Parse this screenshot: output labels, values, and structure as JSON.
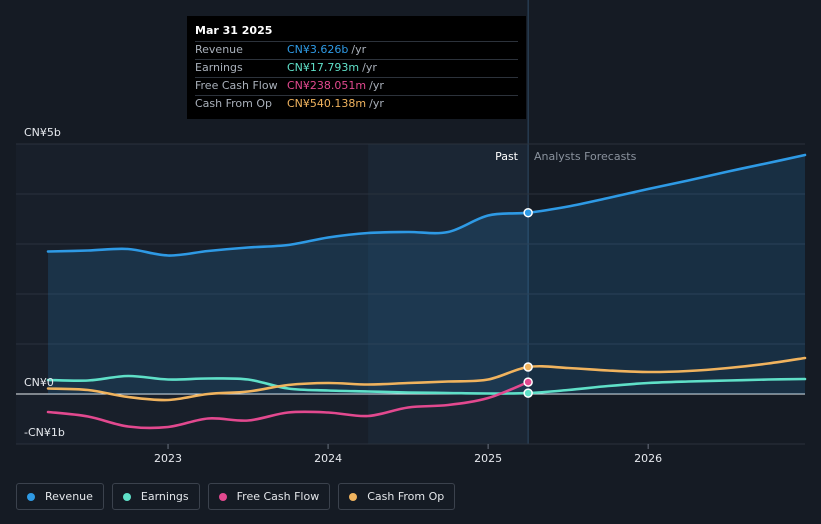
{
  "tooltip": {
    "date": "Mar 31 2025",
    "rows": [
      {
        "name": "Revenue",
        "value": "CN¥3.626b",
        "unit": "/yr",
        "color": "#2e9ae5"
      },
      {
        "name": "Earnings",
        "value": "CN¥17.793m",
        "unit": "/yr",
        "color": "#5fe0c8"
      },
      {
        "name": "Free Cash Flow",
        "value": "CN¥238.051m",
        "unit": "/yr",
        "color": "#e2498f"
      },
      {
        "name": "Cash From Op",
        "value": "CN¥540.138m",
        "unit": "/yr",
        "color": "#f0b35e"
      }
    ]
  },
  "labels": {
    "past": "Past",
    "forecast": "Analysts Forecasts"
  },
  "legend": [
    {
      "name": "Revenue",
      "color": "#2e9ae5"
    },
    {
      "name": "Earnings",
      "color": "#5fe0c8"
    },
    {
      "name": "Free Cash Flow",
      "color": "#e2498f"
    },
    {
      "name": "Cash From Op",
      "color": "#f0b35e"
    }
  ],
  "chart_data": {
    "type": "line",
    "y_tick_labels": [
      "CN¥5b",
      "CN¥0",
      "-CN¥1b"
    ],
    "ylim": [
      -1,
      5
    ],
    "x_ticks": [
      {
        "label": "2023",
        "x": 2023.0
      },
      {
        "label": "2024",
        "x": 2024.0
      },
      {
        "label": "2025",
        "x": 2025.0
      },
      {
        "label": "2026",
        "x": 2026.0
      }
    ],
    "xlim": [
      2022.05,
      2026.98
    ],
    "past_end": 2025.25,
    "highlight_start": 2024.25,
    "grid": true,
    "series": [
      {
        "name": "Revenue",
        "color": "#2e9ae5",
        "area": true,
        "points": [
          [
            2022.25,
            2.85
          ],
          [
            2022.5,
            2.87
          ],
          [
            2022.75,
            2.9
          ],
          [
            2023.0,
            2.77
          ],
          [
            2023.25,
            2.86
          ],
          [
            2023.5,
            2.93
          ],
          [
            2023.75,
            2.98
          ],
          [
            2024.0,
            3.13
          ],
          [
            2024.25,
            3.22
          ],
          [
            2024.5,
            3.24
          ],
          [
            2024.75,
            3.24
          ],
          [
            2025.0,
            3.57
          ],
          [
            2025.25,
            3.626
          ],
          [
            2025.5,
            3.75
          ],
          [
            2025.75,
            3.92
          ],
          [
            2026.0,
            4.1
          ],
          [
            2026.25,
            4.27
          ],
          [
            2026.5,
            4.45
          ],
          [
            2026.75,
            4.62
          ],
          [
            2026.98,
            4.78
          ]
        ]
      },
      {
        "name": "Earnings",
        "color": "#5fe0c8",
        "area": false,
        "points": [
          [
            2022.25,
            0.28
          ],
          [
            2022.5,
            0.27
          ],
          [
            2022.75,
            0.36
          ],
          [
            2023.0,
            0.29
          ],
          [
            2023.25,
            0.31
          ],
          [
            2023.5,
            0.29
          ],
          [
            2023.75,
            0.11
          ],
          [
            2024.0,
            0.07
          ],
          [
            2024.25,
            0.05
          ],
          [
            2024.5,
            0.03
          ],
          [
            2024.75,
            0.02
          ],
          [
            2025.0,
            0.01
          ],
          [
            2025.25,
            0.017793
          ],
          [
            2025.5,
            0.08
          ],
          [
            2025.75,
            0.16
          ],
          [
            2026.0,
            0.22
          ],
          [
            2026.25,
            0.25
          ],
          [
            2026.5,
            0.27
          ],
          [
            2026.75,
            0.29
          ],
          [
            2026.98,
            0.3
          ]
        ]
      },
      {
        "name": "Free Cash Flow",
        "color": "#e2498f",
        "area": false,
        "points": [
          [
            2022.25,
            -0.36
          ],
          [
            2022.5,
            -0.45
          ],
          [
            2022.75,
            -0.65
          ],
          [
            2023.0,
            -0.66
          ],
          [
            2023.25,
            -0.49
          ],
          [
            2023.5,
            -0.53
          ],
          [
            2023.75,
            -0.37
          ],
          [
            2024.0,
            -0.37
          ],
          [
            2024.25,
            -0.44
          ],
          [
            2024.5,
            -0.27
          ],
          [
            2024.75,
            -0.22
          ],
          [
            2025.0,
            -0.08
          ],
          [
            2025.25,
            0.238051
          ]
        ]
      },
      {
        "name": "Cash From Op",
        "color": "#f0b35e",
        "area": false,
        "points": [
          [
            2022.25,
            0.11
          ],
          [
            2022.5,
            0.08
          ],
          [
            2022.75,
            -0.06
          ],
          [
            2023.0,
            -0.12
          ],
          [
            2023.25,
            0.0
          ],
          [
            2023.5,
            0.05
          ],
          [
            2023.75,
            0.18
          ],
          [
            2024.0,
            0.22
          ],
          [
            2024.25,
            0.19
          ],
          [
            2024.5,
            0.22
          ],
          [
            2024.75,
            0.25
          ],
          [
            2025.0,
            0.29
          ],
          [
            2025.25,
            0.540138
          ],
          [
            2025.5,
            0.52
          ],
          [
            2025.75,
            0.47
          ],
          [
            2026.0,
            0.44
          ],
          [
            2026.25,
            0.46
          ],
          [
            2026.5,
            0.52
          ],
          [
            2026.75,
            0.61
          ],
          [
            2026.98,
            0.72
          ]
        ]
      }
    ]
  }
}
